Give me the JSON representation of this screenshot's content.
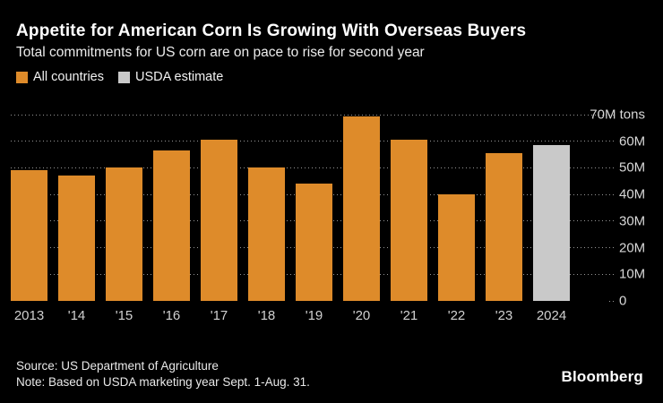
{
  "header": {
    "title": "Appetite for American Corn Is Growing With Overseas Buyers",
    "subtitle": "Total commitments for US corn are on pace to rise for second year"
  },
  "legend": [
    {
      "label": "All countries",
      "color": "#de8b2a"
    },
    {
      "label": "USDA estimate",
      "color": "#c9c9c9"
    }
  ],
  "chart_data": {
    "type": "bar",
    "title": "Appetite for American Corn Is Growing With Overseas Buyers",
    "subtitle": "Total commitments for US corn are on pace to rise for second year",
    "xlabel": "",
    "ylabel": "tons",
    "unit": "M tons",
    "ylim": [
      0,
      70
    ],
    "grid": "horizontal-dotted",
    "legend_position": "top-left",
    "categories": [
      "2013",
      "'14",
      "'15",
      "'16",
      "'17",
      "'18",
      "'19",
      "'20",
      "'21",
      "'22",
      "'23",
      "2024"
    ],
    "series": [
      {
        "name": "All countries",
        "color": "#de8b2a",
        "values": [
          49,
          47,
          50,
          56.5,
          60.5,
          50,
          44,
          69.5,
          60.5,
          40,
          55.5,
          null
        ]
      },
      {
        "name": "USDA estimate",
        "color": "#c9c9c9",
        "values": [
          null,
          null,
          null,
          null,
          null,
          null,
          null,
          null,
          null,
          null,
          null,
          58.5
        ]
      }
    ],
    "y_ticks": [
      {
        "value": 70,
        "label": "70M tons"
      },
      {
        "value": 60,
        "label": "60M"
      },
      {
        "value": 50,
        "label": "50M"
      },
      {
        "value": 40,
        "label": "40M"
      },
      {
        "value": 30,
        "label": "30M"
      },
      {
        "value": 20,
        "label": "20M"
      },
      {
        "value": 10,
        "label": "10M"
      },
      {
        "value": 0,
        "label": "0"
      }
    ]
  },
  "footer": {
    "source": "Source: US Department of Agriculture",
    "note": "Note: Based on USDA marketing year Sept. 1-Aug. 31.",
    "brand": "Bloomberg"
  },
  "colors": {
    "background": "#000000",
    "bar_orange": "#de8b2a",
    "bar_gray": "#c9c9c9",
    "gridline": "#979797",
    "axis_text": "#d8d8d8",
    "title_text": "#ffffff",
    "subtitle_text": "#ececec"
  }
}
